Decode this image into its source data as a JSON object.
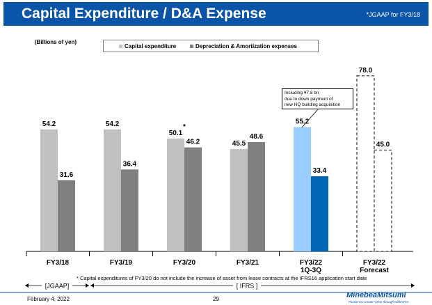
{
  "header": {
    "title": "Capital Expenditure / D&A Expense",
    "note": "*JGAAP for FY3/18"
  },
  "chart_data": {
    "type": "bar",
    "unit": "(Billions of yen)",
    "categories": [
      "FY3/18",
      "FY3/19",
      "FY3/20",
      "FY3/21",
      "FY3/22\n1Q-3Q",
      "FY3/22\nForecast"
    ],
    "series": [
      {
        "name": "Capital expenditure",
        "values": [
          54.2,
          54.2,
          50.1,
          45.5,
          55.2,
          78.0
        ],
        "labels": [
          "54.2",
          "54.2",
          "50.1",
          "45.5",
          "55.2",
          "78.0"
        ]
      },
      {
        "name": "Depreciation & Amortization expenses",
        "values": [
          31.6,
          36.4,
          46.2,
          48.6,
          33.4,
          45.0
        ],
        "labels": [
          "31.6",
          "36.4",
          "46.2",
          "48.6",
          "33.4",
          "45.0"
        ]
      }
    ],
    "ylim": [
      0,
      82
    ],
    "star_mark": "*",
    "colors": {
      "capex": "#c0c0c0",
      "da": "#808080",
      "capex_highlight": "#99ccff",
      "da_highlight": "#0066b3",
      "forecast": "#ffffff"
    },
    "annotation": {
      "lines": [
        "Including ¥7.8 bn",
        "due to down payment of",
        "new HQ building acquisition"
      ]
    },
    "footnote": "* Capital expenditures of FY3/20 do not include the increase of asset from lease contracts at the IFRS16 application start date",
    "periods": {
      "jgaap": "[JGAAP]",
      "ifrs": "[ IFRS ]"
    }
  },
  "footer": {
    "date": "February 4, 2022",
    "page": "29",
    "logo": "MinebeaMitsumi",
    "tagline": "Passion to Create Value through Difference"
  }
}
